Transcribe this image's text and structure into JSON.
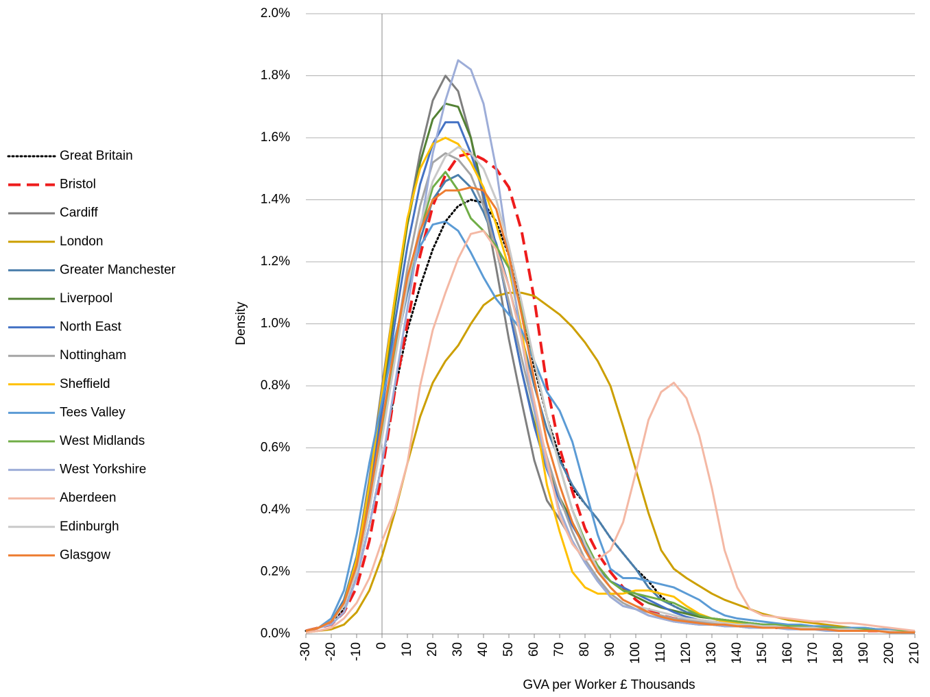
{
  "chart_data": {
    "type": "line",
    "x_label": "GVA per Worker £ Thousands",
    "y_label": "Density",
    "x": [
      -30,
      -25,
      -20,
      -15,
      -10,
      -5,
      0,
      5,
      10,
      15,
      20,
      25,
      30,
      35,
      40,
      45,
      50,
      55,
      60,
      65,
      70,
      75,
      80,
      85,
      90,
      95,
      100,
      105,
      110,
      115,
      120,
      125,
      130,
      135,
      140,
      145,
      150,
      155,
      160,
      165,
      170,
      175,
      180,
      185,
      190,
      195,
      200,
      205,
      210
    ],
    "xlim": [
      -30,
      210
    ],
    "xticks": [
      -30,
      -20,
      -10,
      0,
      10,
      20,
      30,
      40,
      50,
      60,
      70,
      80,
      90,
      100,
      110,
      120,
      130,
      140,
      150,
      160,
      170,
      180,
      190,
      200,
      210
    ],
    "ylim": [
      0,
      2
    ],
    "yticks": [
      {
        "value": 0,
        "label": "0.0%"
      },
      {
        "value": 0.2,
        "label": "0.2%"
      },
      {
        "value": 0.4,
        "label": "0.4%"
      },
      {
        "value": 0.6,
        "label": "0.6%"
      },
      {
        "value": 0.8,
        "label": "0.8%"
      },
      {
        "value": 1,
        "label": "1.0%"
      },
      {
        "value": 1.2,
        "label": "1.2%"
      },
      {
        "value": 1.4,
        "label": "1.4%"
      },
      {
        "value": 1.6,
        "label": "1.6%"
      },
      {
        "value": 1.8,
        "label": "1.8%"
      },
      {
        "value": 2,
        "label": "2.0%"
      }
    ],
    "grid": true,
    "legend": "left",
    "series": [
      {
        "name": "Great Britain",
        "color": "#000000",
        "dash": "dotted",
        "values": [
          0.01,
          0.02,
          0.04,
          0.08,
          0.18,
          0.35,
          0.55,
          0.78,
          0.98,
          1.12,
          1.24,
          1.33,
          1.38,
          1.4,
          1.39,
          1.33,
          1.22,
          1.05,
          0.86,
          0.7,
          0.57,
          0.47,
          0.42,
          0.37,
          0.31,
          0.26,
          0.21,
          0.17,
          0.12,
          0.09,
          0.07,
          0.06,
          0.05,
          0.04,
          0.035,
          0.03,
          0.03,
          0.025,
          0.02,
          0.02,
          0.02,
          0.015,
          0.015,
          0.015,
          0.01,
          0.01,
          0.01,
          0.01,
          0.005
        ]
      },
      {
        "name": "Bristol",
        "color": "#ee1c1c",
        "dash": "dashed",
        "values": [
          0.01,
          0.02,
          0.03,
          0.07,
          0.15,
          0.3,
          0.52,
          0.78,
          1.0,
          1.22,
          1.38,
          1.48,
          1.54,
          1.55,
          1.53,
          1.5,
          1.44,
          1.3,
          1.08,
          0.8,
          0.6,
          0.46,
          0.34,
          0.26,
          0.2,
          0.15,
          0.11,
          0.08,
          0.06,
          0.05,
          0.045,
          0.04,
          0.035,
          0.03,
          0.03,
          0.025,
          0.025,
          0.02,
          0.02,
          0.02,
          0.02,
          0.015,
          0.015,
          0.015,
          0.01,
          0.01,
          0.01,
          0.01,
          0.005
        ]
      },
      {
        "name": "Cardiff",
        "color": "#7f7f7f",
        "values": [
          0.01,
          0.02,
          0.04,
          0.1,
          0.25,
          0.5,
          0.8,
          1.08,
          1.33,
          1.55,
          1.72,
          1.8,
          1.75,
          1.6,
          1.4,
          1.18,
          0.95,
          0.75,
          0.56,
          0.43,
          0.37,
          0.3,
          0.23,
          0.17,
          0.12,
          0.09,
          0.08,
          0.06,
          0.05,
          0.04,
          0.035,
          0.03,
          0.03,
          0.025,
          0.025,
          0.02,
          0.02,
          0.02,
          0.02,
          0.015,
          0.015,
          0.015,
          0.01,
          0.01,
          0.01,
          0.01,
          0.01,
          0.005,
          0.005
        ]
      },
      {
        "name": "London",
        "color": "#cc9f00",
        "values": [
          0.005,
          0.01,
          0.015,
          0.03,
          0.07,
          0.14,
          0.25,
          0.39,
          0.55,
          0.7,
          0.81,
          0.88,
          0.93,
          1.0,
          1.06,
          1.09,
          1.1,
          1.1,
          1.09,
          1.06,
          1.03,
          0.99,
          0.94,
          0.88,
          0.8,
          0.67,
          0.53,
          0.39,
          0.27,
          0.21,
          0.18,
          0.155,
          0.13,
          0.11,
          0.095,
          0.08,
          0.065,
          0.055,
          0.045,
          0.04,
          0.035,
          0.03,
          0.025,
          0.02,
          0.02,
          0.015,
          0.015,
          0.01,
          0.005
        ]
      },
      {
        "name": "Greater Manchester",
        "color": "#4a7eab",
        "values": [
          0.01,
          0.02,
          0.04,
          0.11,
          0.25,
          0.45,
          0.68,
          0.9,
          1.1,
          1.27,
          1.4,
          1.46,
          1.48,
          1.44,
          1.36,
          1.26,
          1.12,
          0.96,
          0.8,
          0.66,
          0.56,
          0.48,
          0.42,
          0.37,
          0.31,
          0.26,
          0.21,
          0.15,
          0.11,
          0.09,
          0.07,
          0.06,
          0.05,
          0.045,
          0.04,
          0.035,
          0.03,
          0.03,
          0.025,
          0.025,
          0.02,
          0.02,
          0.02,
          0.015,
          0.015,
          0.015,
          0.01,
          0.01,
          0.005
        ]
      },
      {
        "name": "Liverpool",
        "color": "#548235",
        "values": [
          0.01,
          0.02,
          0.04,
          0.1,
          0.22,
          0.45,
          0.75,
          1.05,
          1.32,
          1.52,
          1.66,
          1.71,
          1.7,
          1.6,
          1.42,
          1.25,
          1.05,
          0.85,
          0.68,
          0.54,
          0.44,
          0.36,
          0.28,
          0.22,
          0.17,
          0.14,
          0.12,
          0.1,
          0.085,
          0.075,
          0.065,
          0.055,
          0.05,
          0.045,
          0.04,
          0.035,
          0.03,
          0.03,
          0.025,
          0.025,
          0.02,
          0.02,
          0.02,
          0.015,
          0.015,
          0.01,
          0.01,
          0.01,
          0.005
        ]
      },
      {
        "name": "North East",
        "color": "#4472c4",
        "values": [
          0.01,
          0.02,
          0.04,
          0.1,
          0.22,
          0.45,
          0.72,
          1.0,
          1.25,
          1.45,
          1.58,
          1.65,
          1.65,
          1.55,
          1.42,
          1.25,
          1.05,
          0.85,
          0.67,
          0.53,
          0.43,
          0.35,
          0.28,
          0.21,
          0.17,
          0.15,
          0.13,
          0.11,
          0.09,
          0.07,
          0.055,
          0.045,
          0.04,
          0.035,
          0.03,
          0.03,
          0.025,
          0.025,
          0.02,
          0.02,
          0.02,
          0.015,
          0.015,
          0.015,
          0.01,
          0.01,
          0.01,
          0.01,
          0.005
        ]
      },
      {
        "name": "Nottingham",
        "color": "#a5a5a5",
        "values": [
          0.01,
          0.02,
          0.04,
          0.09,
          0.2,
          0.4,
          0.65,
          0.92,
          1.18,
          1.38,
          1.52,
          1.55,
          1.53,
          1.48,
          1.38,
          1.24,
          1.07,
          0.89,
          0.72,
          0.57,
          0.44,
          0.33,
          0.24,
          0.18,
          0.13,
          0.1,
          0.08,
          0.07,
          0.06,
          0.05,
          0.045,
          0.04,
          0.035,
          0.03,
          0.03,
          0.025,
          0.025,
          0.02,
          0.02,
          0.02,
          0.015,
          0.015,
          0.015,
          0.01,
          0.01,
          0.01,
          0.01,
          0.005,
          0.005
        ]
      },
      {
        "name": "Sheffield",
        "color": "#ffc000",
        "values": [
          0.01,
          0.02,
          0.04,
          0.1,
          0.24,
          0.48,
          0.78,
          1.08,
          1.34,
          1.5,
          1.58,
          1.6,
          1.58,
          1.52,
          1.44,
          1.32,
          1.18,
          0.98,
          0.72,
          0.48,
          0.33,
          0.2,
          0.15,
          0.13,
          0.13,
          0.13,
          0.14,
          0.14,
          0.13,
          0.12,
          0.09,
          0.065,
          0.05,
          0.04,
          0.035,
          0.03,
          0.03,
          0.025,
          0.025,
          0.02,
          0.02,
          0.02,
          0.015,
          0.015,
          0.01,
          0.01,
          0.01,
          0.01,
          0.005
        ]
      },
      {
        "name": "Tees Valley",
        "color": "#5b9bd5",
        "values": [
          0.01,
          0.02,
          0.05,
          0.14,
          0.32,
          0.55,
          0.75,
          0.95,
          1.12,
          1.25,
          1.32,
          1.33,
          1.3,
          1.23,
          1.15,
          1.08,
          1.03,
          0.98,
          0.88,
          0.78,
          0.72,
          0.62,
          0.47,
          0.32,
          0.21,
          0.18,
          0.18,
          0.17,
          0.16,
          0.15,
          0.13,
          0.11,
          0.08,
          0.06,
          0.05,
          0.045,
          0.04,
          0.035,
          0.03,
          0.03,
          0.025,
          0.025,
          0.02,
          0.02,
          0.02,
          0.015,
          0.015,
          0.01,
          0.005
        ]
      },
      {
        "name": "West Midlands",
        "color": "#70ad47",
        "values": [
          0.01,
          0.02,
          0.04,
          0.09,
          0.2,
          0.4,
          0.65,
          0.9,
          1.12,
          1.3,
          1.44,
          1.49,
          1.43,
          1.34,
          1.3,
          1.25,
          1.18,
          1.05,
          0.88,
          0.7,
          0.54,
          0.4,
          0.3,
          0.22,
          0.17,
          0.14,
          0.13,
          0.12,
          0.11,
          0.1,
          0.08,
          0.06,
          0.05,
          0.045,
          0.04,
          0.035,
          0.03,
          0.03,
          0.025,
          0.025,
          0.02,
          0.02,
          0.02,
          0.015,
          0.015,
          0.01,
          0.01,
          0.01,
          0.005
        ]
      },
      {
        "name": "West Yorkshire",
        "color": "#9dadd8",
        "values": [
          0.01,
          0.02,
          0.03,
          0.07,
          0.18,
          0.35,
          0.55,
          0.8,
          1.05,
          1.3,
          1.55,
          1.72,
          1.85,
          1.82,
          1.71,
          1.5,
          1.22,
          0.95,
          0.72,
          0.54,
          0.4,
          0.3,
          0.23,
          0.17,
          0.12,
          0.09,
          0.08,
          0.06,
          0.05,
          0.04,
          0.035,
          0.03,
          0.03,
          0.025,
          0.025,
          0.02,
          0.02,
          0.02,
          0.015,
          0.015,
          0.015,
          0.01,
          0.01,
          0.01,
          0.01,
          0.01,
          0.005,
          0.005,
          0.005
        ]
      },
      {
        "name": "Aberdeen",
        "color": "#f4b8a4",
        "values": [
          0.005,
          0.01,
          0.02,
          0.05,
          0.1,
          0.18,
          0.3,
          0.4,
          0.55,
          0.8,
          0.98,
          1.1,
          1.21,
          1.29,
          1.3,
          1.24,
          1.12,
          0.95,
          0.75,
          0.56,
          0.38,
          0.29,
          0.24,
          0.24,
          0.27,
          0.36,
          0.52,
          0.69,
          0.78,
          0.81,
          0.76,
          0.64,
          0.47,
          0.27,
          0.15,
          0.08,
          0.06,
          0.055,
          0.05,
          0.045,
          0.04,
          0.04,
          0.035,
          0.035,
          0.03,
          0.025,
          0.02,
          0.015,
          0.01
        ]
      },
      {
        "name": "Edinburgh",
        "color": "#c9c9c9",
        "values": [
          0.01,
          0.02,
          0.04,
          0.09,
          0.2,
          0.4,
          0.63,
          0.88,
          1.12,
          1.32,
          1.46,
          1.54,
          1.57,
          1.55,
          1.5,
          1.4,
          1.25,
          1.07,
          0.88,
          0.7,
          0.54,
          0.4,
          0.29,
          0.21,
          0.15,
          0.11,
          0.09,
          0.08,
          0.07,
          0.06,
          0.05,
          0.045,
          0.04,
          0.035,
          0.03,
          0.03,
          0.025,
          0.025,
          0.02,
          0.02,
          0.02,
          0.015,
          0.015,
          0.015,
          0.01,
          0.01,
          0.01,
          0.005,
          0.005
        ]
      },
      {
        "name": "Glasgow",
        "color": "#ed7d31",
        "values": [
          0.01,
          0.02,
          0.04,
          0.1,
          0.22,
          0.43,
          0.68,
          0.93,
          1.15,
          1.3,
          1.4,
          1.43,
          1.43,
          1.44,
          1.43,
          1.37,
          1.22,
          1.03,
          0.82,
          0.62,
          0.48,
          0.36,
          0.27,
          0.2,
          0.15,
          0.11,
          0.09,
          0.07,
          0.055,
          0.045,
          0.04,
          0.035,
          0.03,
          0.03,
          0.025,
          0.025,
          0.02,
          0.02,
          0.02,
          0.015,
          0.015,
          0.015,
          0.01,
          0.01,
          0.01,
          0.01,
          0.005,
          0.005,
          0.005
        ]
      }
    ]
  }
}
